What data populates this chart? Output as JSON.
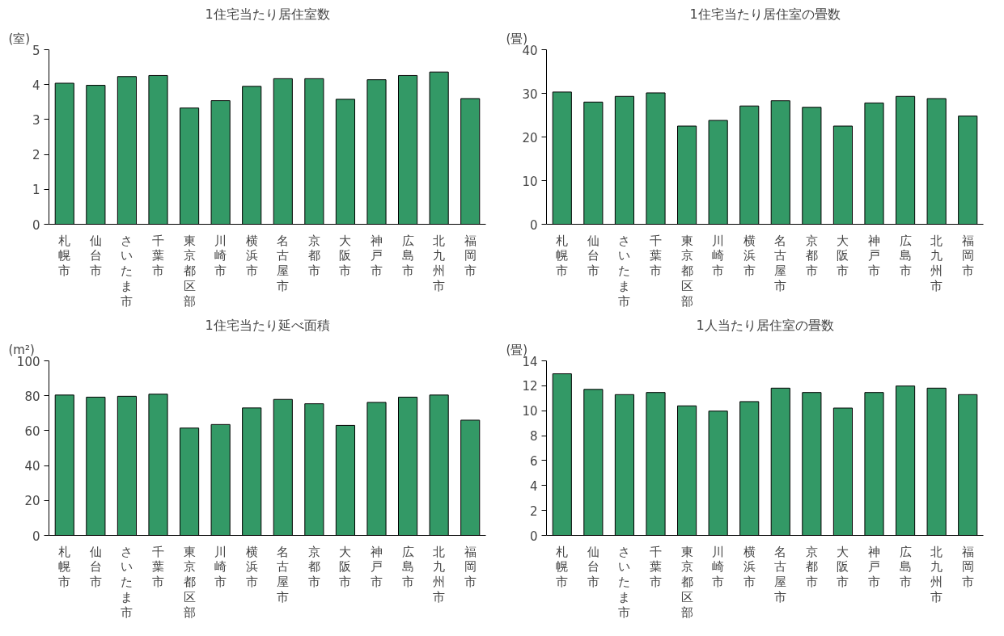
{
  "chart_data": [
    {
      "type": "bar",
      "title": "1住宅当たり居住室数",
      "ylabel": "(室)",
      "categories": [
        "札幌市",
        "仙台市",
        "さいたま市",
        "千葉市",
        "東京都区部",
        "川崎市",
        "横浜市",
        "名古屋市",
        "京都市",
        "大阪市",
        "神戸市",
        "広島市",
        "北九州市",
        "福岡市"
      ],
      "values": [
        4.04,
        3.98,
        4.23,
        4.26,
        3.33,
        3.54,
        3.95,
        4.17,
        4.17,
        3.58,
        4.14,
        4.26,
        4.36,
        3.6
      ],
      "color": "#339966",
      "ylim": [
        0,
        5
      ],
      "yticks": [
        0,
        1,
        2,
        3,
        4,
        5
      ],
      "grid": false,
      "legend": false
    },
    {
      "type": "bar",
      "title": "1住宅当たり居住室の畳数",
      "ylabel": "(畳)",
      "categories": [
        "札幌市",
        "仙台市",
        "さいたま市",
        "千葉市",
        "東京都区部",
        "川崎市",
        "横浜市",
        "名古屋市",
        "京都市",
        "大阪市",
        "神戸市",
        "広島市",
        "北九州市",
        "福岡市"
      ],
      "values": [
        30.3,
        28.0,
        29.3,
        30.1,
        22.5,
        23.8,
        27.1,
        28.3,
        26.8,
        22.5,
        27.8,
        29.3,
        28.8,
        24.8
      ],
      "color": "#339966",
      "ylim": [
        0,
        40
      ],
      "yticks": [
        0,
        10,
        20,
        30,
        40
      ],
      "grid": false,
      "legend": false
    },
    {
      "type": "bar",
      "title": "1住宅当たり延べ面積",
      "ylabel": "(m²)",
      "categories": [
        "札幌市",
        "仙台市",
        "さいたま市",
        "千葉市",
        "東京都区部",
        "川崎市",
        "横浜市",
        "名古屋市",
        "京都市",
        "大阪市",
        "神戸市",
        "広島市",
        "北九州市",
        "福岡市"
      ],
      "values": [
        80.4,
        79.2,
        79.7,
        80.9,
        61.5,
        63.5,
        73.0,
        77.9,
        75.4,
        63.0,
        76.2,
        79.2,
        80.4,
        66.0
      ],
      "color": "#339966",
      "ylim": [
        0,
        100
      ],
      "yticks": [
        0,
        20,
        40,
        60,
        80,
        100
      ],
      "grid": false,
      "legend": false
    },
    {
      "type": "bar",
      "title": "1人当たり居住室の畳数",
      "ylabel": "(畳)",
      "categories": [
        "札幌市",
        "仙台市",
        "さいたま市",
        "千葉市",
        "東京都区部",
        "川崎市",
        "横浜市",
        "名古屋市",
        "京都市",
        "大阪市",
        "神戸市",
        "広島市",
        "北九州市",
        "福岡市"
      ],
      "values": [
        12.96,
        11.71,
        11.29,
        11.46,
        10.39,
        9.97,
        10.73,
        11.81,
        11.46,
        10.21,
        11.46,
        11.98,
        11.81,
        11.29
      ],
      "color": "#339966",
      "ylim": [
        0,
        14
      ],
      "yticks": [
        0,
        2,
        4,
        6,
        8,
        10,
        12,
        14
      ],
      "grid": false,
      "legend": false
    }
  ]
}
